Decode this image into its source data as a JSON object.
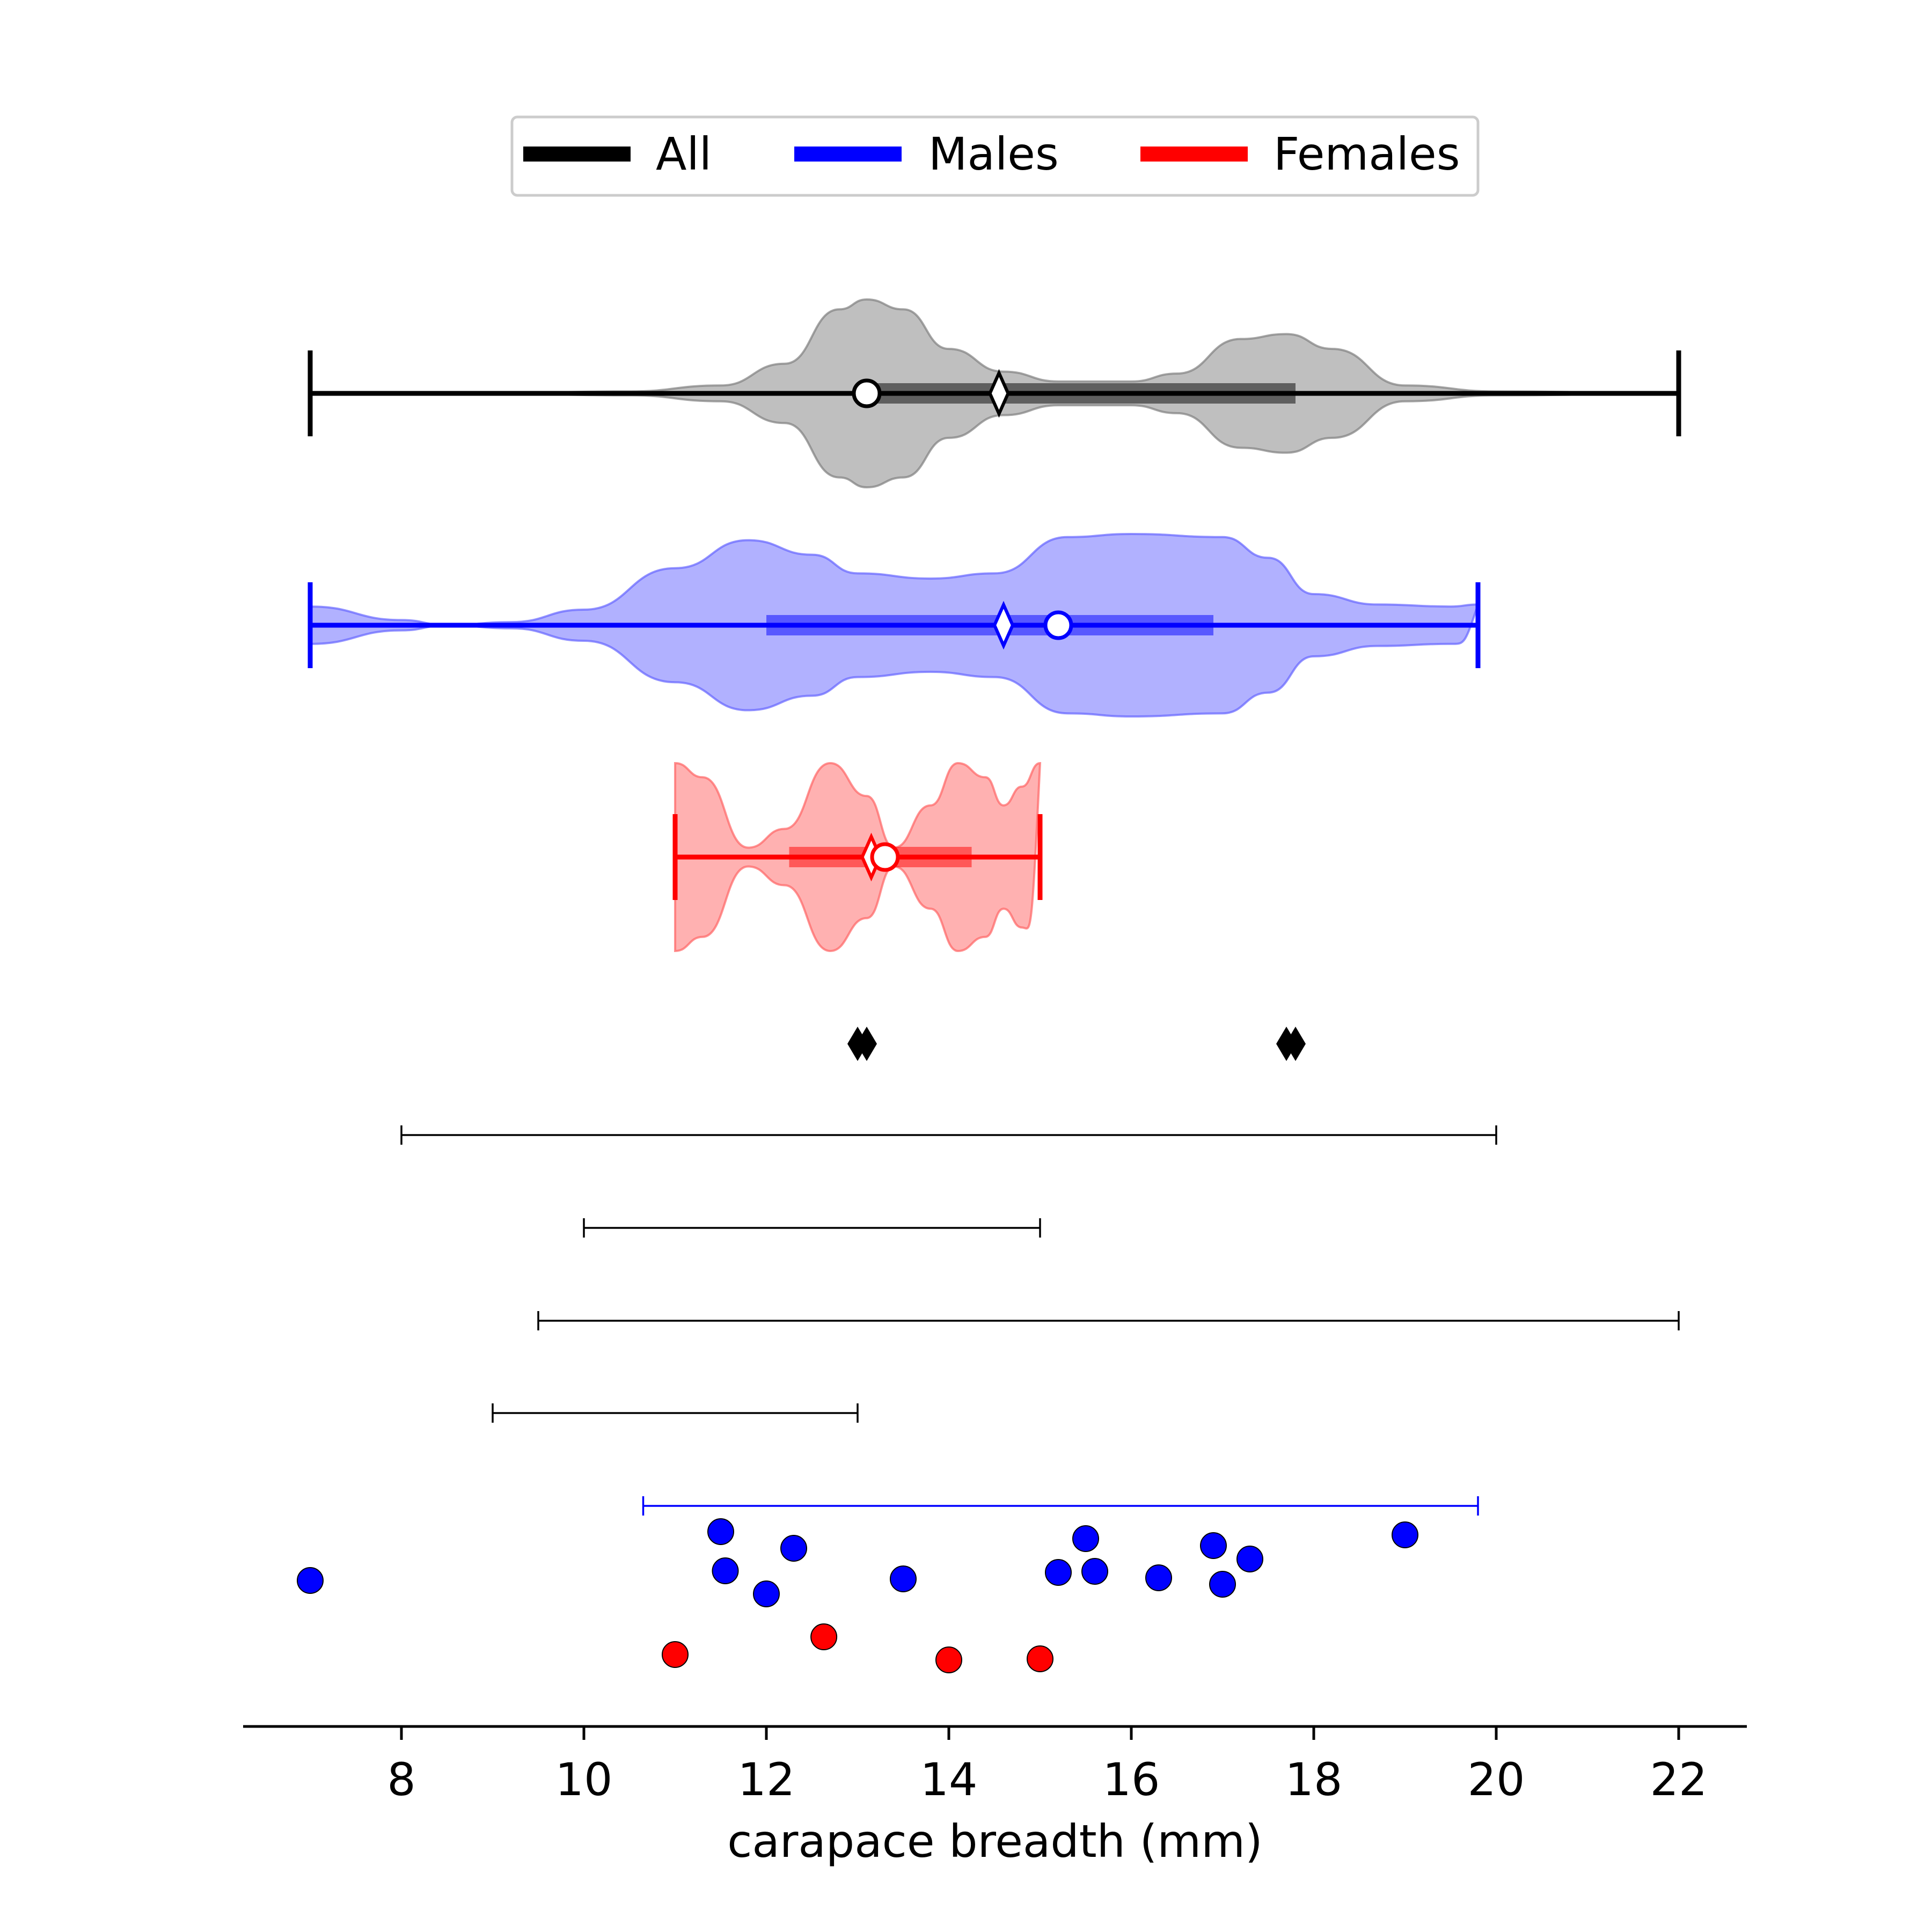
{
  "chart_data": {
    "type": "violin",
    "xlabel": "carapace breadth (mm)",
    "xticks": [
      8,
      10,
      12,
      14,
      16,
      18,
      20,
      22
    ],
    "xlim": [
      6.2,
      22.75
    ],
    "legend": {
      "placement": "top-center",
      "entries": [
        {
          "label": "All",
          "color": "#000000"
        },
        {
          "label": "Males",
          "color": "#0000ff"
        },
        {
          "label": "Females",
          "color": "#ff0000"
        }
      ]
    },
    "violins": [
      {
        "name": "All",
        "color": "#000000",
        "fill": "#7f7f7f",
        "min": 7,
        "max": 22,
        "q1": 13.1,
        "q3": 17.8,
        "median": 13.1,
        "mean": 14.55,
        "density": [
          [
            7,
            0.002
          ],
          [
            9,
            0.005
          ],
          [
            10.5,
            0.02
          ],
          [
            11.5,
            0.08
          ],
          [
            12.2,
            0.3
          ],
          [
            12.8,
            0.85
          ],
          [
            13.1,
            0.95
          ],
          [
            13.5,
            0.85
          ],
          [
            14,
            0.45
          ],
          [
            14.6,
            0.22
          ],
          [
            15.2,
            0.12
          ],
          [
            16,
            0.12
          ],
          [
            16.5,
            0.2
          ],
          [
            17.2,
            0.55
          ],
          [
            17.7,
            0.6
          ],
          [
            18.2,
            0.45
          ],
          [
            19,
            0.08
          ],
          [
            20,
            0.02
          ],
          [
            22,
            0.001
          ]
        ]
      },
      {
        "name": "Males",
        "color": "#0000ff",
        "fill": "#6464ff",
        "min": 7,
        "max": 19.8,
        "q1": 12,
        "q3": 16.9,
        "median": 15.2,
        "mean": 14.6,
        "density": [
          [
            7,
            0.18
          ],
          [
            8,
            0.05
          ],
          [
            8.5,
            0.0
          ],
          [
            9.2,
            0.03
          ],
          [
            10,
            0.15
          ],
          [
            11,
            0.55
          ],
          [
            11.8,
            0.82
          ],
          [
            12.5,
            0.68
          ],
          [
            13,
            0.5
          ],
          [
            13.8,
            0.45
          ],
          [
            14.5,
            0.5
          ],
          [
            15.3,
            0.85
          ],
          [
            16,
            0.88
          ],
          [
            17,
            0.85
          ],
          [
            17.5,
            0.65
          ],
          [
            18,
            0.3
          ],
          [
            18.7,
            0.2
          ],
          [
            19.5,
            0.18
          ],
          [
            19.8,
            0.2
          ]
        ]
      },
      {
        "name": "Females",
        "color": "#ff0000",
        "fill": "#ff6464",
        "min": 11,
        "max": 15,
        "q1": 12.25,
        "q3": 14.25,
        "median": 13.3,
        "mean": 13.15,
        "density": [
          [
            11,
            1
          ],
          [
            11.3,
            0.85
          ],
          [
            11.8,
            0.1
          ],
          [
            12.2,
            0.3
          ],
          [
            12.7,
            1
          ],
          [
            13.1,
            0.65
          ],
          [
            13.4,
            0.1
          ],
          [
            13.8,
            0.55
          ],
          [
            14.1,
            1
          ],
          [
            14.4,
            0.85
          ],
          [
            14.6,
            0.55
          ],
          [
            14.8,
            0.75
          ],
          [
            15,
            1
          ]
        ]
      }
    ],
    "markers_row": {
      "color": "#000000",
      "x": [
        13,
        13.1,
        17.7,
        17.8
      ]
    },
    "intervals": [
      {
        "from": 8,
        "to": 20,
        "color": "#000000"
      },
      {
        "from": 10,
        "to": 15,
        "color": "#000000"
      },
      {
        "from": 9.5,
        "to": 22,
        "color": "#000000"
      },
      {
        "from": 9,
        "to": 13,
        "color": "#000000"
      },
      {
        "from": 10.65,
        "to": 19.8,
        "color": "#0000ff"
      }
    ],
    "points": {
      "males": {
        "color": "#0000ff",
        "x": [
          7,
          11.5,
          11.55,
          12,
          12.3,
          13.5,
          15.2,
          15.5,
          15.6,
          16.3,
          16.9,
          17,
          17.3,
          19
        ]
      },
      "females": {
        "color": "#ff0000",
        "x": [
          11,
          12.63,
          14,
          15
        ]
      }
    }
  }
}
